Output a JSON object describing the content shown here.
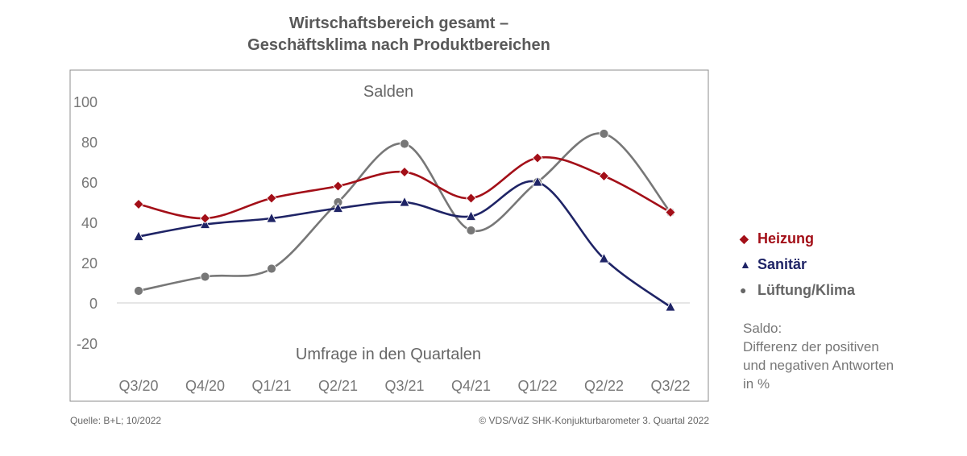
{
  "title_line1": "Wirtschaftsbereich gesamt –",
  "title_line2": "Geschäftsklima nach Produktbereichen",
  "footer": {
    "source": "Quelle: B+L; 10/2022",
    "copyright": "© VDS/VdZ SHK-Konjukturbarometer 3. Quartal 2022"
  },
  "note_lines": [
    "Saldo:",
    "Differenz der positiven",
    "und negativen Antworten",
    "in %"
  ],
  "colors": {
    "Heizung": "#a30f18",
    "Sanitär": "#1f2466",
    "Lüftung/Klima": "#777777"
  },
  "chart_data": {
    "type": "line",
    "inner_title": "Salden",
    "xlabel": "Umfrage in den Quartalen",
    "ylabel": "",
    "categories": [
      "Q3/20",
      "Q4/20",
      "Q1/21",
      "Q2/21",
      "Q3/21",
      "Q4/21",
      "Q1/22",
      "Q2/22",
      "Q3/22"
    ],
    "ylim": [
      -20,
      100
    ],
    "yticks": [
      "100",
      "80",
      "60",
      "40",
      "20",
      "0",
      "-20"
    ],
    "smooth": true,
    "legend_position": "right",
    "series": [
      {
        "name": "Heizung",
        "marker": "diamond",
        "marker_symbol": "◆",
        "values": [
          49,
          42,
          52,
          58,
          65,
          52,
          72,
          63,
          45
        ]
      },
      {
        "name": "Sanitär",
        "marker": "triangle",
        "marker_symbol": "▲",
        "values": [
          33,
          39,
          42,
          47,
          50,
          43,
          60,
          22,
          -2
        ]
      },
      {
        "name": "Lüftung/Klima",
        "marker": "circle",
        "marker_symbol": "●",
        "values": [
          6,
          13,
          17,
          50,
          79,
          36,
          60,
          84,
          45
        ]
      }
    ]
  }
}
